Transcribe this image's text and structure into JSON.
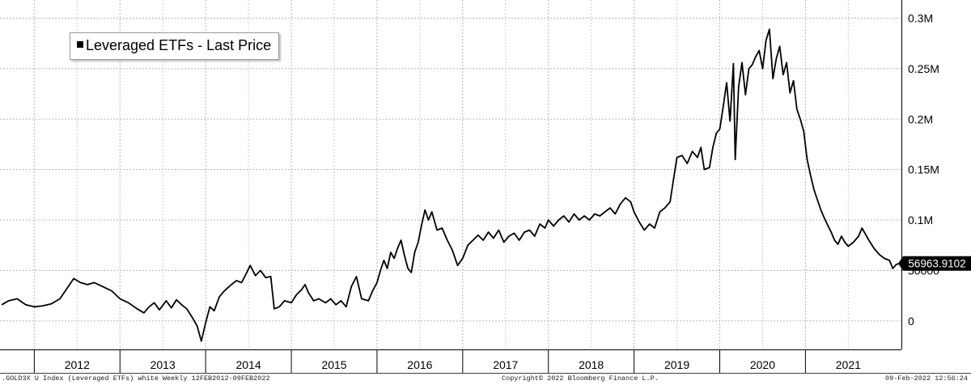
{
  "legend": {
    "label": "Leveraged ETFs - Last Price"
  },
  "footer": {
    "left": ".GOLD3X U Index (Leveraged ETFs) white  Weekly 12FEB2012-09FEB2022",
    "center": "Copyright© 2022 Bloomberg Finance L.P.",
    "right": "09-Feb-2022 12:56:24"
  },
  "chart_data": {
    "type": "line",
    "title": "",
    "xlabel": "",
    "ylabel": "",
    "xlim": [
      2011.6,
      2022.12
    ],
    "ylim": [
      -25000,
      310000
    ],
    "x_ticks": [
      "2012",
      "2013",
      "2014",
      "2015",
      "2016",
      "2017",
      "2018",
      "2019",
      "2020",
      "2021"
    ],
    "y_ticks": [
      {
        "value": 0,
        "label": "0"
      },
      {
        "value": 50000,
        "label": "50000"
      },
      {
        "value": 100000,
        "label": "0.1M"
      },
      {
        "value": 150000,
        "label": "0.15M"
      },
      {
        "value": 200000,
        "label": "0.2M"
      },
      {
        "value": 250000,
        "label": "0.25M"
      },
      {
        "value": 300000,
        "label": "0.3M"
      }
    ],
    "grid": true,
    "legend_position": "top-left",
    "last_value_label": "56963.9102",
    "line_color": "#000000",
    "series": [
      {
        "name": "Leveraged ETFs - Last Price",
        "points": [
          [
            2011.62,
            16000
          ],
          [
            2011.7,
            20000
          ],
          [
            2011.8,
            22000
          ],
          [
            2011.9,
            16000
          ],
          [
            2012.0,
            14000
          ],
          [
            2012.1,
            15000
          ],
          [
            2012.2,
            17000
          ],
          [
            2012.3,
            22000
          ],
          [
            2012.38,
            32000
          ],
          [
            2012.46,
            42000
          ],
          [
            2012.54,
            38000
          ],
          [
            2012.62,
            36000
          ],
          [
            2012.7,
            38000
          ],
          [
            2012.8,
            34000
          ],
          [
            2012.9,
            30000
          ],
          [
            2013.0,
            22000
          ],
          [
            2013.1,
            18000
          ],
          [
            2013.2,
            12000
          ],
          [
            2013.28,
            8000
          ],
          [
            2013.34,
            14000
          ],
          [
            2013.4,
            18000
          ],
          [
            2013.46,
            11000
          ],
          [
            2013.54,
            20000
          ],
          [
            2013.6,
            13000
          ],
          [
            2013.66,
            21000
          ],
          [
            2013.72,
            16000
          ],
          [
            2013.78,
            12000
          ],
          [
            2013.84,
            4000
          ],
          [
            2013.9,
            -5000
          ],
          [
            2013.95,
            -20000
          ],
          [
            2014.0,
            -2000
          ],
          [
            2014.05,
            14000
          ],
          [
            2014.1,
            10000
          ],
          [
            2014.16,
            24000
          ],
          [
            2014.22,
            30000
          ],
          [
            2014.3,
            36000
          ],
          [
            2014.36,
            40000
          ],
          [
            2014.42,
            38000
          ],
          [
            2014.48,
            48000
          ],
          [
            2014.52,
            55000
          ],
          [
            2014.58,
            45000
          ],
          [
            2014.64,
            50000
          ],
          [
            2014.7,
            43000
          ],
          [
            2014.76,
            44000
          ],
          [
            2014.8,
            12000
          ],
          [
            2014.86,
            14000
          ],
          [
            2014.92,
            20000
          ],
          [
            2015.0,
            18000
          ],
          [
            2015.06,
            26000
          ],
          [
            2015.12,
            31000
          ],
          [
            2015.16,
            36000
          ],
          [
            2015.2,
            28000
          ],
          [
            2015.26,
            20000
          ],
          [
            2015.32,
            22000
          ],
          [
            2015.4,
            18000
          ],
          [
            2015.46,
            22000
          ],
          [
            2015.52,
            16000
          ],
          [
            2015.58,
            20000
          ],
          [
            2015.64,
            14000
          ],
          [
            2015.7,
            34000
          ],
          [
            2015.76,
            44000
          ],
          [
            2015.82,
            22000
          ],
          [
            2015.9,
            20000
          ],
          [
            2015.95,
            30000
          ],
          [
            2016.0,
            38000
          ],
          [
            2016.04,
            50000
          ],
          [
            2016.08,
            60000
          ],
          [
            2016.12,
            52000
          ],
          [
            2016.16,
            68000
          ],
          [
            2016.2,
            62000
          ],
          [
            2016.24,
            72000
          ],
          [
            2016.28,
            80000
          ],
          [
            2016.32,
            65000
          ],
          [
            2016.36,
            52000
          ],
          [
            2016.4,
            48000
          ],
          [
            2016.44,
            68000
          ],
          [
            2016.48,
            78000
          ],
          [
            2016.52,
            95000
          ],
          [
            2016.56,
            110000
          ],
          [
            2016.6,
            100000
          ],
          [
            2016.64,
            108000
          ],
          [
            2016.7,
            90000
          ],
          [
            2016.76,
            92000
          ],
          [
            2016.82,
            80000
          ],
          [
            2016.88,
            70000
          ],
          [
            2016.94,
            55000
          ],
          [
            2017.0,
            62000
          ],
          [
            2017.06,
            75000
          ],
          [
            2017.12,
            80000
          ],
          [
            2017.18,
            85000
          ],
          [
            2017.24,
            80000
          ],
          [
            2017.3,
            88000
          ],
          [
            2017.36,
            82000
          ],
          [
            2017.42,
            90000
          ],
          [
            2017.48,
            78000
          ],
          [
            2017.54,
            84000
          ],
          [
            2017.6,
            87000
          ],
          [
            2017.66,
            80000
          ],
          [
            2017.72,
            88000
          ],
          [
            2017.78,
            90000
          ],
          [
            2017.84,
            84000
          ],
          [
            2017.9,
            96000
          ],
          [
            2017.96,
            92000
          ],
          [
            2018.0,
            100000
          ],
          [
            2018.06,
            94000
          ],
          [
            2018.12,
            100000
          ],
          [
            2018.18,
            104000
          ],
          [
            2018.24,
            98000
          ],
          [
            2018.3,
            106000
          ],
          [
            2018.36,
            100000
          ],
          [
            2018.42,
            104000
          ],
          [
            2018.48,
            100000
          ],
          [
            2018.54,
            106000
          ],
          [
            2018.6,
            104000
          ],
          [
            2018.66,
            108000
          ],
          [
            2018.72,
            112000
          ],
          [
            2018.78,
            106000
          ],
          [
            2018.84,
            116000
          ],
          [
            2018.9,
            122000
          ],
          [
            2018.96,
            118000
          ],
          [
            2019.0,
            108000
          ],
          [
            2019.06,
            98000
          ],
          [
            2019.12,
            90000
          ],
          [
            2019.18,
            96000
          ],
          [
            2019.24,
            92000
          ],
          [
            2019.3,
            108000
          ],
          [
            2019.36,
            112000
          ],
          [
            2019.42,
            118000
          ],
          [
            2019.46,
            140000
          ],
          [
            2019.5,
            162000
          ],
          [
            2019.56,
            164000
          ],
          [
            2019.62,
            156000
          ],
          [
            2019.68,
            168000
          ],
          [
            2019.74,
            162000
          ],
          [
            2019.78,
            172000
          ],
          [
            2019.82,
            150000
          ],
          [
            2019.88,
            152000
          ],
          [
            2019.92,
            172000
          ],
          [
            2019.96,
            186000
          ],
          [
            2020.0,
            190000
          ],
          [
            2020.04,
            212000
          ],
          [
            2020.08,
            236000
          ],
          [
            2020.12,
            198000
          ],
          [
            2020.16,
            255000
          ],
          [
            2020.18,
            160000
          ],
          [
            2020.22,
            232000
          ],
          [
            2020.26,
            256000
          ],
          [
            2020.3,
            224000
          ],
          [
            2020.34,
            250000
          ],
          [
            2020.38,
            254000
          ],
          [
            2020.42,
            262000
          ],
          [
            2020.46,
            268000
          ],
          [
            2020.5,
            250000
          ],
          [
            2020.54,
            278000
          ],
          [
            2020.58,
            289000
          ],
          [
            2020.62,
            240000
          ],
          [
            2020.66,
            260000
          ],
          [
            2020.7,
            272000
          ],
          [
            2020.74,
            244000
          ],
          [
            2020.78,
            256000
          ],
          [
            2020.82,
            226000
          ],
          [
            2020.86,
            238000
          ],
          [
            2020.9,
            210000
          ],
          [
            2020.94,
            200000
          ],
          [
            2020.98,
            188000
          ],
          [
            2021.02,
            160000
          ],
          [
            2021.06,
            144000
          ],
          [
            2021.1,
            130000
          ],
          [
            2021.14,
            120000
          ],
          [
            2021.18,
            110000
          ],
          [
            2021.22,
            102000
          ],
          [
            2021.26,
            95000
          ],
          [
            2021.3,
            88000
          ],
          [
            2021.34,
            80000
          ],
          [
            2021.38,
            76000
          ],
          [
            2021.42,
            84000
          ],
          [
            2021.46,
            78000
          ],
          [
            2021.5,
            74000
          ],
          [
            2021.56,
            78000
          ],
          [
            2021.62,
            84000
          ],
          [
            2021.66,
            92000
          ],
          [
            2021.7,
            86000
          ],
          [
            2021.74,
            80000
          ],
          [
            2021.8,
            72000
          ],
          [
            2021.86,
            66000
          ],
          [
            2021.92,
            62000
          ],
          [
            2021.98,
            60000
          ],
          [
            2022.02,
            52000
          ],
          [
            2022.06,
            56000
          ],
          [
            2022.1,
            56964
          ]
        ]
      }
    ]
  }
}
